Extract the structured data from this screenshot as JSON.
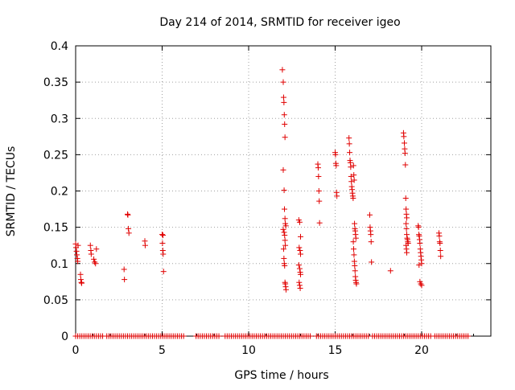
{
  "chart_data": {
    "type": "scatter",
    "title": "Day 214 of 2014, SRMTID for receiver igeo",
    "xlabel": "GPS time / hours",
    "ylabel": "SRMTID / TECUs",
    "xlim": [
      0,
      24
    ],
    "ylim": [
      0,
      0.4
    ],
    "x_ticks": [
      0,
      5,
      10,
      15,
      20
    ],
    "x_tick_labels": [
      "0",
      "5",
      "10",
      "15",
      "20"
    ],
    "y_ticks": [
      0,
      0.05,
      0.1,
      0.15,
      0.2,
      0.25,
      0.3,
      0.35,
      0.4
    ],
    "y_tick_labels": [
      "0",
      "0.05",
      "0.1",
      "0.15",
      "0.2",
      "0.25",
      "0.3",
      "0.35",
      "0.4"
    ],
    "grid": true,
    "marker": "+",
    "series": [
      {
        "name": "SRMTID",
        "color": "#e00000",
        "points": [
          [
            0.0,
            0.127
          ],
          [
            0.02,
            0.122
          ],
          [
            0.05,
            0.117
          ],
          [
            0.07,
            0.112
          ],
          [
            0.1,
            0.107
          ],
          [
            0.12,
            0.103
          ],
          [
            0.14,
            0.125
          ],
          [
            0.28,
            0.085
          ],
          [
            0.3,
            0.078
          ],
          [
            0.33,
            0.074
          ],
          [
            0.35,
            0.073
          ],
          [
            0.85,
            0.125
          ],
          [
            0.88,
            0.118
          ],
          [
            0.9,
            0.113
          ],
          [
            1.05,
            0.106
          ],
          [
            1.1,
            0.102
          ],
          [
            1.15,
            0.1
          ],
          [
            1.2,
            0.12
          ],
          [
            2.8,
            0.092
          ],
          [
            2.82,
            0.078
          ],
          [
            3.0,
            0.168
          ],
          [
            3.02,
            0.167
          ],
          [
            3.05,
            0.148
          ],
          [
            3.08,
            0.142
          ],
          [
            4.0,
            0.131
          ],
          [
            4.02,
            0.125
          ],
          [
            5.0,
            0.14
          ],
          [
            5.05,
            0.139
          ],
          [
            5.02,
            0.128
          ],
          [
            5.04,
            0.118
          ],
          [
            5.06,
            0.113
          ],
          [
            5.08,
            0.089
          ],
          [
            11.95,
            0.367
          ],
          [
            12.0,
            0.35
          ],
          [
            12.02,
            0.329
          ],
          [
            12.04,
            0.322
          ],
          [
            12.06,
            0.305
          ],
          [
            12.08,
            0.292
          ],
          [
            12.1,
            0.274
          ],
          [
            12.0,
            0.229
          ],
          [
            12.05,
            0.201
          ],
          [
            12.07,
            0.175
          ],
          [
            12.1,
            0.162
          ],
          [
            12.12,
            0.155
          ],
          [
            12.15,
            0.152
          ],
          [
            12.0,
            0.147
          ],
          [
            12.05,
            0.143
          ],
          [
            12.08,
            0.139
          ],
          [
            12.1,
            0.132
          ],
          [
            12.12,
            0.125
          ],
          [
            12.02,
            0.12
          ],
          [
            12.04,
            0.107
          ],
          [
            12.06,
            0.1
          ],
          [
            12.08,
            0.097
          ],
          [
            12.1,
            0.074
          ],
          [
            12.12,
            0.072
          ],
          [
            12.14,
            0.068
          ],
          [
            12.16,
            0.064
          ],
          [
            12.9,
            0.16
          ],
          [
            12.95,
            0.157
          ],
          [
            13.0,
            0.137
          ],
          [
            12.92,
            0.122
          ],
          [
            12.97,
            0.118
          ],
          [
            13.0,
            0.113
          ],
          [
            12.9,
            0.098
          ],
          [
            12.95,
            0.093
          ],
          [
            12.98,
            0.088
          ],
          [
            13.0,
            0.085
          ],
          [
            12.92,
            0.074
          ],
          [
            12.95,
            0.07
          ],
          [
            12.98,
            0.066
          ],
          [
            14.0,
            0.237
          ],
          [
            14.02,
            0.232
          ],
          [
            14.04,
            0.22
          ],
          [
            14.06,
            0.2
          ],
          [
            14.08,
            0.186
          ],
          [
            14.1,
            0.156
          ],
          [
            15.0,
            0.253
          ],
          [
            15.02,
            0.25
          ],
          [
            15.04,
            0.238
          ],
          [
            15.06,
            0.235
          ],
          [
            15.08,
            0.198
          ],
          [
            15.1,
            0.193
          ],
          [
            15.8,
            0.273
          ],
          [
            15.82,
            0.265
          ],
          [
            15.84,
            0.253
          ],
          [
            15.86,
            0.242
          ],
          [
            15.88,
            0.239
          ],
          [
            15.9,
            0.233
          ],
          [
            15.92,
            0.22
          ],
          [
            15.94,
            0.213
          ],
          [
            15.96,
            0.206
          ],
          [
            15.98,
            0.202
          ],
          [
            16.0,
            0.197
          ],
          [
            16.02,
            0.193
          ],
          [
            16.04,
            0.19
          ],
          [
            16.06,
            0.235
          ],
          [
            16.08,
            0.222
          ],
          [
            16.1,
            0.215
          ],
          [
            16.12,
            0.155
          ],
          [
            16.14,
            0.148
          ],
          [
            16.16,
            0.145
          ],
          [
            16.18,
            0.14
          ],
          [
            16.2,
            0.135
          ],
          [
            16.05,
            0.13
          ],
          [
            16.07,
            0.12
          ],
          [
            16.09,
            0.112
          ],
          [
            16.11,
            0.103
          ],
          [
            16.13,
            0.097
          ],
          [
            16.15,
            0.09
          ],
          [
            16.17,
            0.082
          ],
          [
            16.19,
            0.077
          ],
          [
            16.21,
            0.074
          ],
          [
            16.23,
            0.072
          ],
          [
            17.0,
            0.167
          ],
          [
            17.02,
            0.15
          ],
          [
            17.04,
            0.145
          ],
          [
            17.06,
            0.14
          ],
          [
            17.08,
            0.13
          ],
          [
            17.1,
            0.102
          ],
          [
            18.2,
            0.09
          ],
          [
            18.95,
            0.28
          ],
          [
            18.97,
            0.275
          ],
          [
            19.0,
            0.266
          ],
          [
            19.02,
            0.258
          ],
          [
            19.04,
            0.252
          ],
          [
            19.06,
            0.236
          ],
          [
            19.08,
            0.19
          ],
          [
            19.1,
            0.175
          ],
          [
            19.12,
            0.168
          ],
          [
            19.14,
            0.163
          ],
          [
            19.1,
            0.155
          ],
          [
            19.12,
            0.148
          ],
          [
            19.14,
            0.14
          ],
          [
            19.16,
            0.135
          ],
          [
            19.18,
            0.133
          ],
          [
            19.2,
            0.13
          ],
          [
            19.22,
            0.128
          ],
          [
            19.1,
            0.125
          ],
          [
            19.12,
            0.12
          ],
          [
            19.14,
            0.115
          ],
          [
            19.8,
            0.152
          ],
          [
            19.82,
            0.15
          ],
          [
            19.84,
            0.14
          ],
          [
            19.86,
            0.138
          ],
          [
            19.88,
            0.133
          ],
          [
            19.9,
            0.128
          ],
          [
            19.92,
            0.12
          ],
          [
            19.94,
            0.115
          ],
          [
            19.96,
            0.11
          ],
          [
            19.98,
            0.105
          ],
          [
            20.0,
            0.1
          ],
          [
            19.85,
            0.098
          ],
          [
            19.9,
            0.075
          ],
          [
            19.95,
            0.072
          ],
          [
            20.0,
            0.07
          ],
          [
            21.0,
            0.142
          ],
          [
            21.02,
            0.138
          ],
          [
            21.04,
            0.13
          ],
          [
            21.06,
            0.128
          ],
          [
            21.08,
            0.118
          ],
          [
            21.1,
            0.11
          ]
        ]
      },
      {
        "name": "zero baseline",
        "color": "#e00000",
        "x_range": [
          0,
          22.7
        ],
        "x_gaps": [
          [
            1.6,
            1.75
          ],
          [
            6.35,
            6.9
          ],
          [
            8.4,
            8.55
          ],
          [
            13.65,
            13.85
          ],
          [
            16.95,
            17.05
          ],
          [
            20.6,
            20.75
          ]
        ],
        "y": 0
      }
    ]
  }
}
